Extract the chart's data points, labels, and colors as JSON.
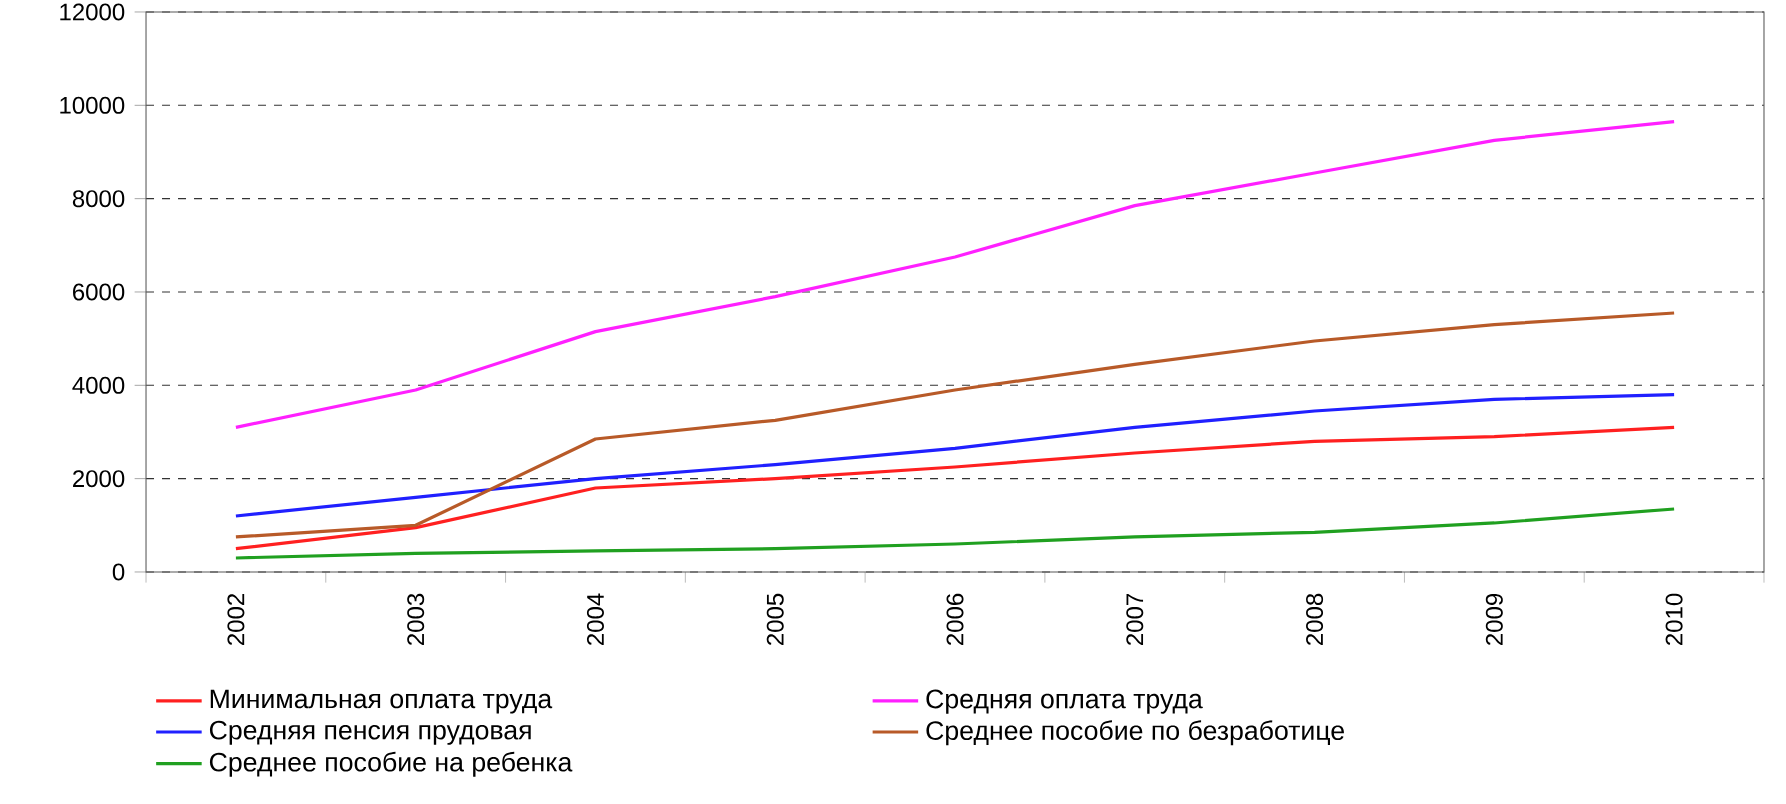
{
  "chart_data": {
    "type": "line",
    "categories": [
      "2002",
      "2003",
      "2004",
      "2005",
      "2006",
      "2007",
      "2008",
      "2009",
      "2010"
    ],
    "series": [
      {
        "name": "Минимальная оплата труда",
        "color": "#ff2020",
        "values": [
          500,
          950,
          1800,
          2000,
          2250,
          2550,
          2800,
          2900,
          3100
        ]
      },
      {
        "name": "Средняя оплата труда",
        "color": "#ff20ff",
        "values": [
          3100,
          3900,
          5150,
          5900,
          6750,
          7850,
          8550,
          9250,
          9650
        ]
      },
      {
        "name": "Средняя пенсия прудовая",
        "color": "#2020ff",
        "values": [
          1200,
          1600,
          2000,
          2300,
          2650,
          3100,
          3450,
          3700,
          3800
        ]
      },
      {
        "name": "Среднее пособие по безработице",
        "color": "#b85a28",
        "values": [
          750,
          1000,
          2850,
          3250,
          3900,
          4450,
          4950,
          5300,
          5550
        ]
      },
      {
        "name": "Среднее пособие на ребенка",
        "color": "#20a020",
        "values": [
          300,
          400,
          450,
          500,
          600,
          750,
          850,
          1050,
          1350
        ]
      }
    ],
    "ylim": [
      0,
      12000
    ],
    "yticks": [
      0,
      2000,
      4000,
      6000,
      8000,
      10000,
      12000
    ],
    "grid": "y",
    "legend": "bottom",
    "marker": "none",
    "line_style": "solid"
  }
}
